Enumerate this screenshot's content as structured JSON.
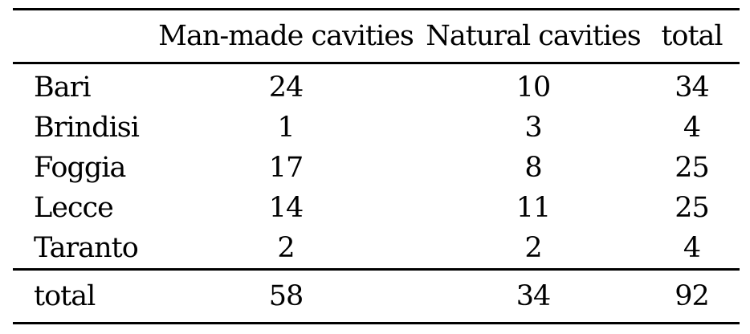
{
  "table": {
    "headers": {
      "col0": "",
      "col1": "Man-made cavities",
      "col2": "Natural cavities",
      "col3": "total"
    },
    "rows": [
      {
        "label": "Bari",
        "values": [
          "24",
          "10",
          "34"
        ]
      },
      {
        "label": "Brindisi",
        "values": [
          "1",
          "3",
          "4"
        ]
      },
      {
        "label": "Foggia",
        "values": [
          "17",
          "8",
          "25"
        ]
      },
      {
        "label": "Lecce",
        "values": [
          "14",
          "11",
          "25"
        ]
      },
      {
        "label": "Taranto",
        "values": [
          "2",
          "2",
          "4"
        ]
      }
    ],
    "footer": {
      "label": "total",
      "values": [
        "58",
        "34",
        "92"
      ]
    }
  },
  "colors": {
    "text": "#000000",
    "rule": "#000000",
    "background": "#ffffff"
  },
  "chart_data": {
    "type": "table",
    "columns": [
      "",
      "Man-made cavities",
      "Natural cavities",
      "total"
    ],
    "rows": [
      [
        "Bari",
        24,
        10,
        34
      ],
      [
        "Brindisi",
        1,
        3,
        4
      ],
      [
        "Foggia",
        17,
        8,
        25
      ],
      [
        "Lecce",
        14,
        11,
        25
      ],
      [
        "Taranto",
        2,
        2,
        4
      ],
      [
        "total",
        58,
        34,
        92
      ]
    ]
  }
}
